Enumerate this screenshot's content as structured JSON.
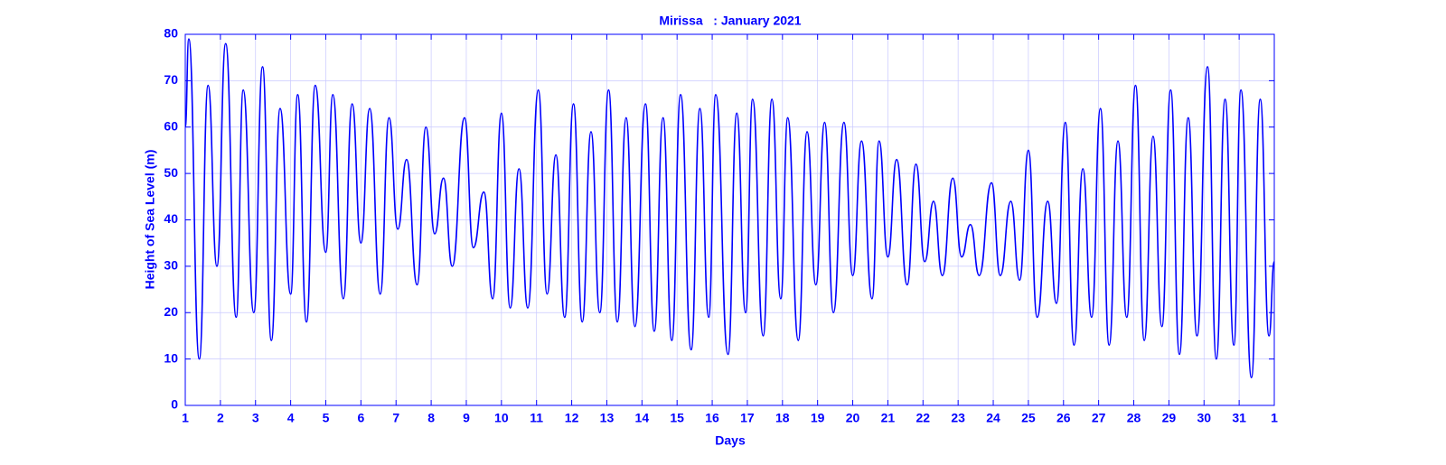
{
  "chart_data": {
    "type": "line",
    "title": "Mirissa   : January 2021",
    "x_label": "Days",
    "y_label": "Height of Sea Level (m)",
    "xlim": [
      1,
      32
    ],
    "xticks": [
      1,
      2,
      3,
      4,
      5,
      6,
      7,
      8,
      9,
      10,
      11,
      12,
      13,
      14,
      15,
      16,
      17,
      18,
      19,
      20,
      21,
      22,
      23,
      24,
      25,
      26,
      27,
      28,
      29,
      30,
      31,
      {
        "value": 32,
        "label": "1"
      }
    ],
    "ylim": [
      0,
      80
    ],
    "yticks": [
      0,
      10,
      20,
      30,
      40,
      50,
      60,
      70,
      80
    ],
    "grid": true,
    "series": [
      {
        "name": "Height of Sea Level",
        "color": "#0000ff",
        "x": [
          1,
          1.1,
          1.4,
          1.65,
          1.9,
          2.15,
          2.45,
          2.65,
          2.95,
          3.2,
          3.45,
          3.7,
          4.0,
          4.2,
          4.45,
          4.7,
          5.0,
          5.2,
          5.5,
          5.75,
          6.0,
          6.25,
          6.55,
          6.8,
          7.05,
          7.3,
          7.6,
          7.85,
          8.1,
          8.35,
          8.6,
          8.95,
          9.2,
          9.5,
          9.75,
          10.0,
          10.25,
          10.5,
          10.75,
          11.05,
          11.3,
          11.55,
          11.8,
          12.05,
          12.3,
          12.55,
          12.8,
          13.05,
          13.3,
          13.55,
          13.8,
          14.1,
          14.35,
          14.6,
          14.85,
          15.1,
          15.4,
          15.65,
          15.9,
          16.1,
          16.45,
          16.7,
          16.95,
          17.15,
          17.45,
          17.7,
          17.95,
          18.15,
          18.45,
          18.7,
          18.95,
          19.2,
          19.45,
          19.75,
          20.0,
          20.25,
          20.55,
          20.75,
          21.0,
          21.25,
          21.55,
          21.8,
          22.05,
          22.3,
          22.55,
          22.85,
          23.1,
          23.35,
          23.6,
          23.95,
          24.2,
          24.5,
          24.75,
          25.0,
          25.25,
          25.55,
          25.8,
          26.05,
          26.3,
          26.55,
          26.8,
          27.05,
          27.3,
          27.55,
          27.8,
          28.05,
          28.3,
          28.55,
          28.8,
          29.05,
          29.3,
          29.55,
          29.8,
          30.1,
          30.35,
          30.6,
          30.85,
          31.05,
          31.35,
          31.6,
          31.85,
          32
        ],
        "values": [
          60,
          79,
          10,
          69,
          30,
          78,
          19,
          68,
          20,
          73,
          14,
          64,
          24,
          67,
          18,
          69,
          33,
          67,
          23,
          65,
          35,
          64,
          24,
          62,
          38,
          53,
          26,
          60,
          37,
          49,
          30,
          62,
          34,
          46,
          23,
          63,
          21,
          51,
          21,
          68,
          24,
          54,
          19,
          65,
          18,
          59,
          20,
          68,
          18,
          62,
          17,
          65,
          16,
          62,
          14,
          67,
          12,
          64,
          19,
          67,
          11,
          63,
          20,
          66,
          15,
          66,
          23,
          62,
          14,
          59,
          26,
          61,
          20,
          61,
          28,
          57,
          23,
          57,
          32,
          53,
          26,
          52,
          31,
          44,
          28,
          49,
          32,
          39,
          28,
          48,
          28,
          44,
          27,
          55,
          19,
          44,
          22,
          61,
          13,
          51,
          19,
          64,
          13,
          57,
          19,
          69,
          14,
          58,
          17,
          68,
          11,
          62,
          15,
          73,
          10,
          66,
          13,
          68,
          6,
          66,
          15,
          31
        ]
      }
    ]
  }
}
